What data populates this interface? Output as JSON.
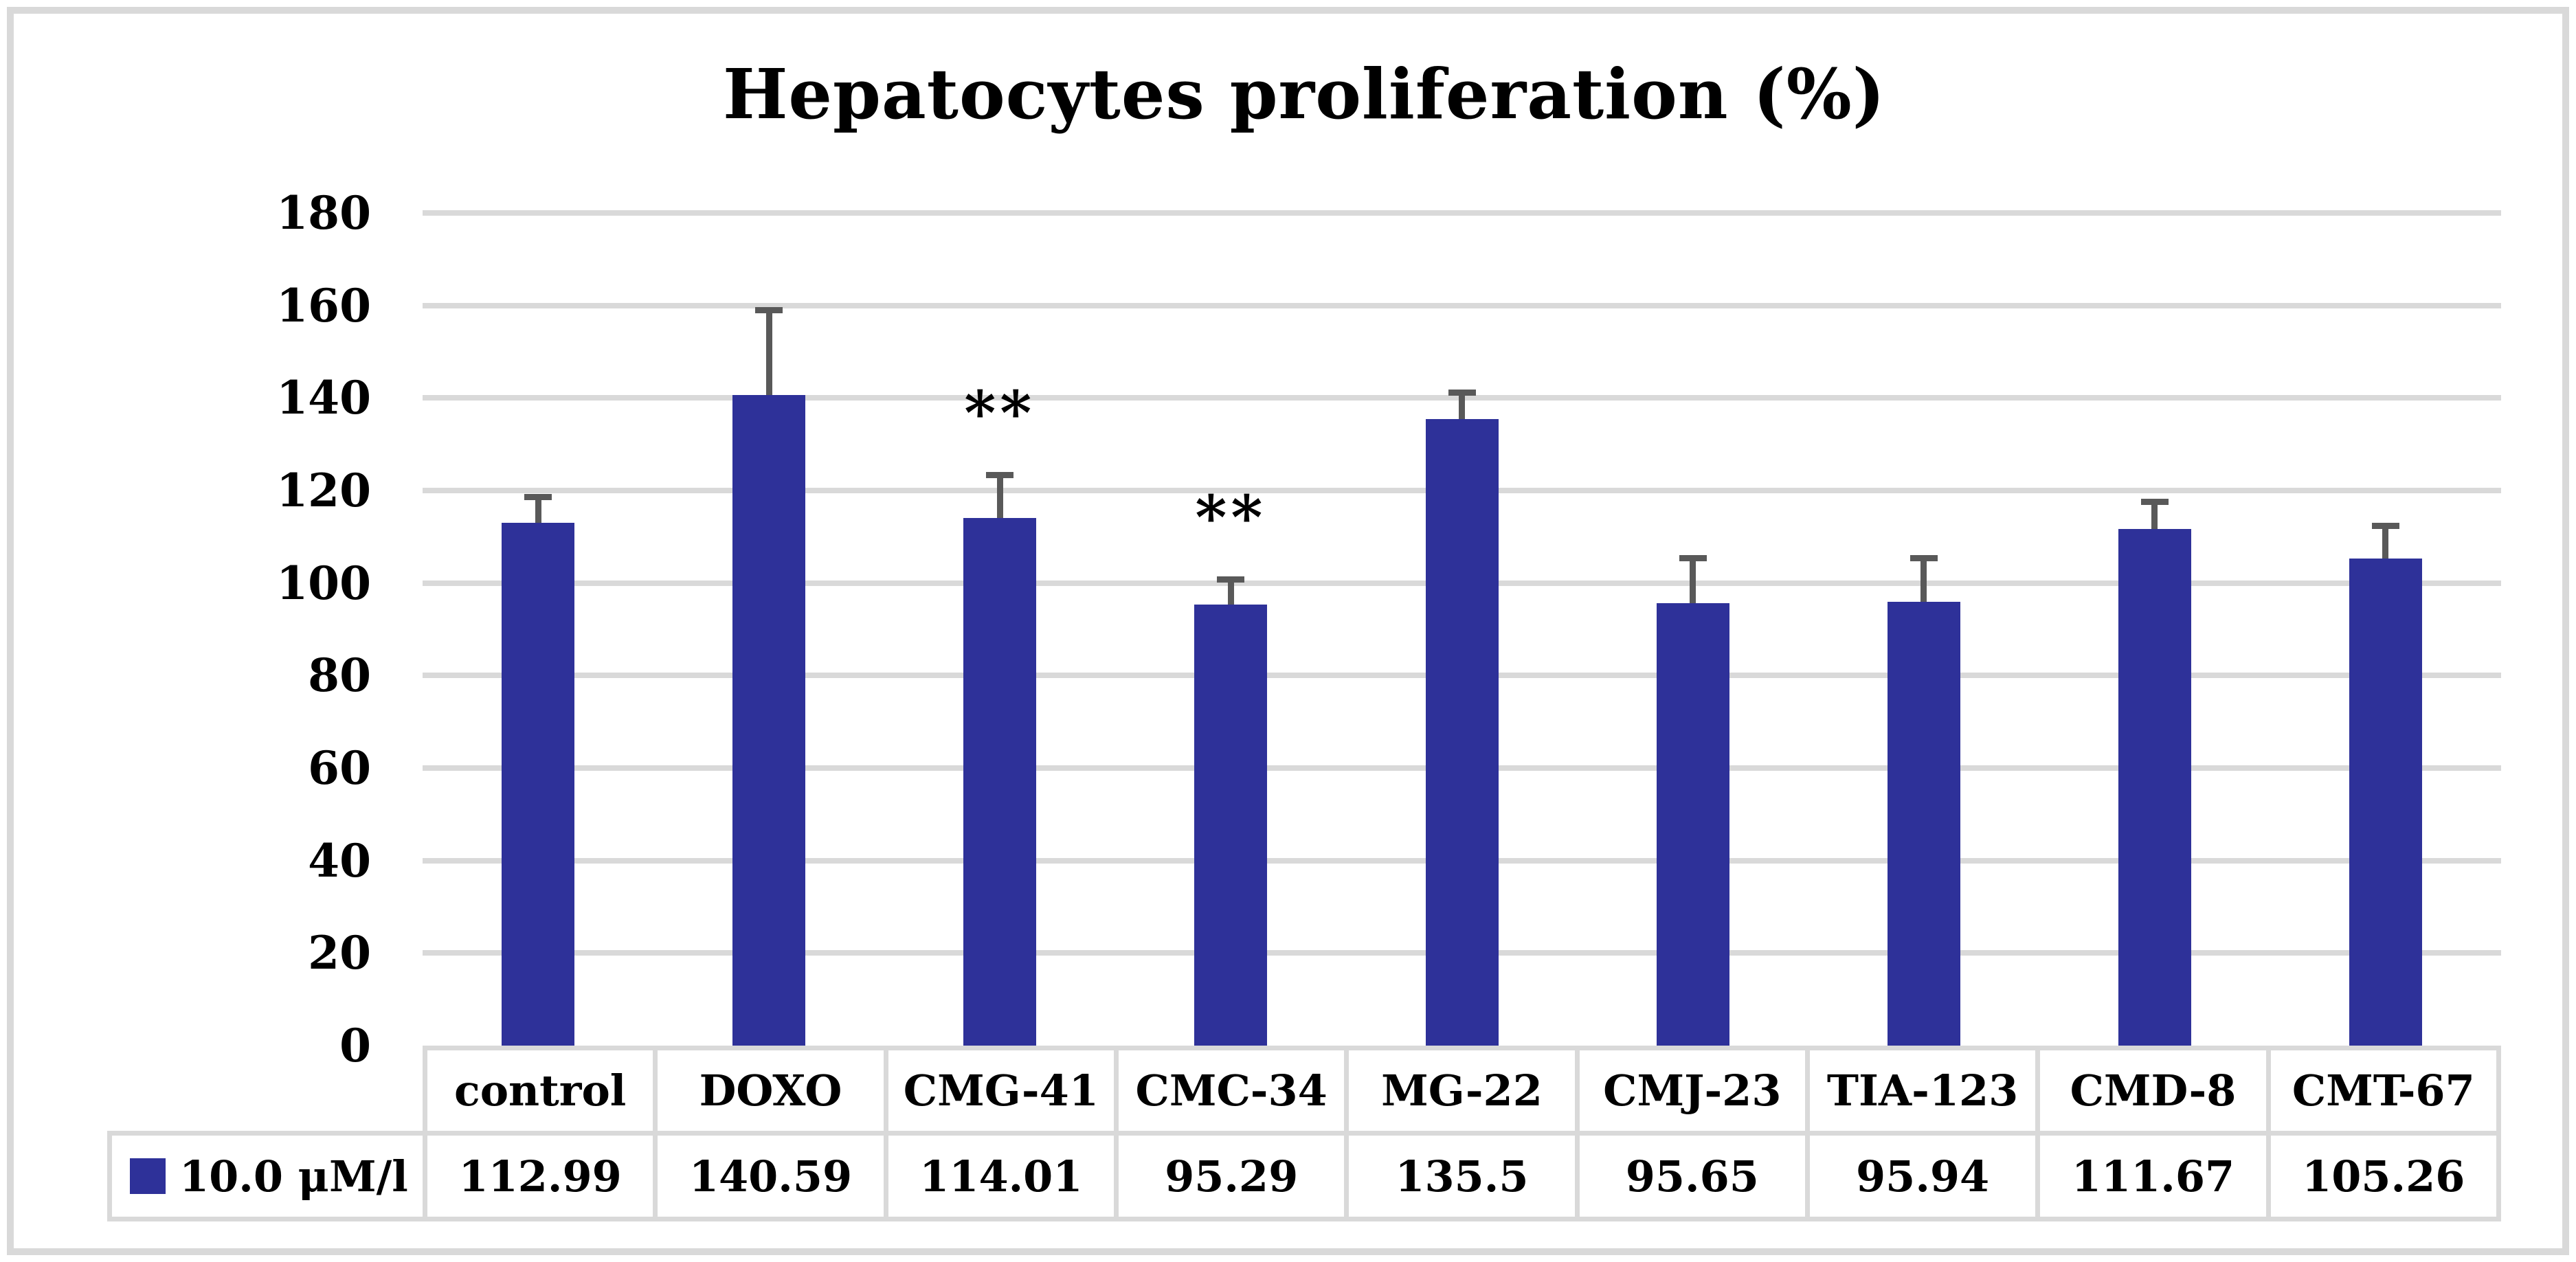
{
  "chart_data": {
    "type": "bar",
    "title": "Hepatocytes proliferation (%)",
    "categories": [
      "control",
      "DOXO",
      "CMG-41",
      "CMC-34",
      "MG-22",
      "CMJ-23",
      "TIA-123",
      "CMD-8",
      "CMT-67"
    ],
    "series": [
      {
        "name": "10.0 μM/l",
        "values": [
          112.99,
          140.59,
          114.01,
          95.29,
          135.5,
          95.65,
          95.94,
          111.67,
          105.26
        ],
        "error_plus": [
          5.7,
          18.4,
          9.4,
          5.5,
          5.8,
          9.8,
          9.5,
          5.9,
          7.1
        ]
      }
    ],
    "annotations": [
      {
        "category": "CMG-41",
        "text": "**"
      },
      {
        "category": "CMC-34",
        "text": "**"
      }
    ],
    "ylim": [
      0,
      180
    ],
    "ytick_step": 20,
    "yticks": [
      0,
      20,
      40,
      60,
      80,
      100,
      120,
      140,
      160,
      180
    ],
    "grid": true,
    "legend_position": "bottom-table-left",
    "data_table_shown": true
  },
  "table": {
    "legend_label": "10.0 μM/l",
    "columns": [
      "control",
      "DOXO",
      "CMG-41",
      "CMC-34",
      "MG-22",
      "CMJ-23",
      "TIA-123",
      "CMD-8",
      "CMT-67"
    ],
    "row_values": [
      "112.99",
      "140.59",
      "114.01",
      "95.29",
      "135.5",
      "95.65",
      "95.94",
      "111.67",
      "105.26"
    ]
  },
  "colors": {
    "bar": "#2E3199",
    "error_bar": "#595959",
    "gridline": "#D9D9D9",
    "table_border": "#D9D9D9",
    "figure_border": "#D9D9D9",
    "text": "#000000",
    "background": "#FFFFFF"
  }
}
